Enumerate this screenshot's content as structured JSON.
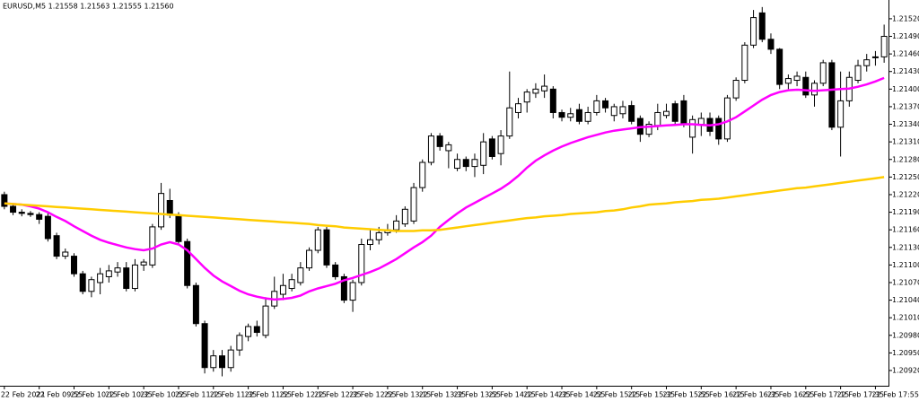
{
  "chart_data": {
    "type": "candlestick",
    "title": "EURUSD,M5  1.21558 1.21563 1.21555 1.21560",
    "categories": [
      "22 Feb 2021",
      null,
      null,
      null,
      "22 Feb 09:55",
      null,
      null,
      null,
      "22 Feb 10:15",
      null,
      null,
      null,
      "22 Feb 10:35",
      null,
      null,
      null,
      "22 Feb 10:55",
      null,
      null,
      null,
      "22 Feb 11:15",
      null,
      null,
      null,
      "22 Feb 11:35",
      null,
      null,
      null,
      "22 Feb 11:55",
      null,
      null,
      null,
      "22 Feb 12:15",
      null,
      null,
      null,
      "22 Feb 12:35",
      null,
      null,
      null,
      "22 Feb 12:55",
      null,
      null,
      null,
      "22 Feb 13:15",
      null,
      null,
      null,
      "22 Feb 13:35",
      null,
      null,
      null,
      "22 Feb 13:55",
      null,
      null,
      null,
      "22 Feb 14:15",
      null,
      null,
      null,
      "22 Feb 14:35",
      null,
      null,
      null,
      "22 Feb 14:55",
      null,
      null,
      null,
      "22 Feb 15:15",
      null,
      null,
      null,
      "22 Feb 15:35",
      null,
      null,
      null,
      "22 Feb 15:55",
      null,
      null,
      null,
      "22 Feb 16:15",
      null,
      null,
      null,
      "22 Feb 16:35",
      null,
      null,
      null,
      "22 Feb 16:55",
      null,
      null,
      null,
      "22 Feb 17:15",
      null,
      null,
      null,
      "22 Feb 17:35",
      null,
      null,
      null,
      "22 Feb 17:55",
      null
    ],
    "open": [
      1.2122,
      1.212,
      1.2119,
      1.21188,
      1.21186,
      1.21183,
      1.2115,
      1.21115,
      1.21115,
      1.21085,
      1.21055,
      1.2107,
      1.2108,
      1.21088,
      1.21095,
      1.2106,
      1.211,
      1.211,
      1.21165,
      1.2121,
      1.21185,
      1.2114,
      1.21065,
      1.21,
      1.20925,
      1.20945,
      1.20925,
      1.20955,
      1.20978,
      1.20995,
      1.2098,
      1.2103,
      1.2105,
      1.2106,
      1.2107,
      1.21095,
      1.21125,
      1.2116,
      1.211,
      1.2108,
      1.2104,
      1.2107,
      1.21135,
      1.21143,
      1.21155,
      1.2116,
      1.2117,
      1.21175,
      1.21232,
      1.21275,
      1.2132,
      1.21295,
      1.21265,
      1.2128,
      1.21268,
      1.2127,
      1.21315,
      1.2129,
      1.2132,
      1.2136,
      1.21378,
      1.21393,
      1.21397,
      1.214,
      1.2136,
      1.21352,
      1.21365,
      1.21345,
      1.2136,
      1.2138,
      1.21355,
      1.21358,
      1.21372,
      1.2135,
      1.21323,
      1.21338,
      1.21355,
      1.21375,
      1.2138,
      1.21318,
      1.2134,
      1.2135,
      1.2135,
      1.21315,
      1.21385,
      1.21415,
      1.21475,
      1.2153,
      1.21485,
      1.21468,
      1.2141,
      1.21415,
      1.2142,
      1.2139,
      1.2141,
      1.21445,
      1.21335,
      1.2138,
      1.21415,
      1.2144,
      1.21455,
      1.21455
    ],
    "high": [
      1.21225,
      1.21205,
      1.21195,
      1.21192,
      1.2119,
      1.2119,
      1.21155,
      1.21128,
      1.2112,
      1.2109,
      1.2108,
      1.21095,
      1.211,
      1.21105,
      1.21105,
      1.2111,
      1.2111,
      1.2117,
      1.2124,
      1.2123,
      1.2119,
      1.21145,
      1.2107,
      1.21005,
      1.20955,
      1.20955,
      1.20962,
      1.20985,
      1.21,
      1.21005,
      1.21045,
      1.2108,
      1.21085,
      1.21085,
      1.21105,
      1.2113,
      1.21165,
      1.21165,
      1.21105,
      1.21085,
      1.21075,
      1.21145,
      1.2116,
      1.21165,
      1.2117,
      1.21185,
      1.212,
      1.2124,
      1.2128,
      1.21325,
      1.21325,
      1.2131,
      1.2129,
      1.21285,
      1.2129,
      1.21325,
      1.2132,
      1.2133,
      1.2143,
      1.21385,
      1.214,
      1.2141,
      1.21425,
      1.21405,
      1.21365,
      1.21368,
      1.21375,
      1.2137,
      1.2139,
      1.21385,
      1.21375,
      1.2138,
      1.2138,
      1.21355,
      1.21345,
      1.21375,
      1.21375,
      1.2138,
      1.2139,
      1.21355,
      1.2136,
      1.2136,
      1.21355,
      1.2139,
      1.2142,
      1.2148,
      1.21535,
      1.2154,
      1.21495,
      1.2147,
      1.21425,
      1.2143,
      1.2143,
      1.21415,
      1.2145,
      1.2145,
      1.2143,
      1.2143,
      1.2145,
      1.2146,
      1.21465,
      1.2151
    ],
    "low": [
      1.21195,
      1.21185,
      1.21183,
      1.21182,
      1.2117,
      1.2114,
      1.2111,
      1.2111,
      1.2108,
      1.2105,
      1.21045,
      1.2105,
      1.2107,
      1.2108,
      1.21055,
      1.21055,
      1.2109,
      1.21095,
      1.2116,
      1.2118,
      1.21135,
      1.2106,
      1.20995,
      1.20915,
      1.20918,
      1.2091,
      1.20918,
      1.20945,
      1.2097,
      1.20978,
      1.20975,
      1.21025,
      1.2104,
      1.21055,
      1.21065,
      1.2109,
      1.2112,
      1.21095,
      1.21075,
      1.21035,
      1.2102,
      1.21065,
      1.21125,
      1.21135,
      1.2115,
      1.21155,
      1.21165,
      1.2117,
      1.21225,
      1.2127,
      1.21295,
      1.21265,
      1.2126,
      1.2126,
      1.2125,
      1.21255,
      1.2128,
      1.2127,
      1.21315,
      1.2135,
      1.2136,
      1.21385,
      1.21385,
      1.2135,
      1.21345,
      1.21345,
      1.2134,
      1.2134,
      1.21355,
      1.2136,
      1.21345,
      1.2135,
      1.2134,
      1.2131,
      1.21318,
      1.2133,
      1.2135,
      1.2134,
      1.21335,
      1.2129,
      1.2132,
      1.2132,
      1.21305,
      1.2131,
      1.2138,
      1.2141,
      1.2147,
      1.2148,
      1.2146,
      1.214,
      1.214,
      1.21405,
      1.21385,
      1.2137,
      1.21405,
      1.2133,
      1.21285,
      1.2137,
      1.2141,
      1.2143,
      1.2144,
      1.21445
    ],
    "close": [
      1.212,
      1.2119,
      1.21188,
      1.21186,
      1.21178,
      1.21145,
      1.21115,
      1.21122,
      1.21085,
      1.21055,
      1.21075,
      1.21085,
      1.2109,
      1.21095,
      1.2106,
      1.211,
      1.21105,
      1.21165,
      1.21222,
      1.21185,
      1.2114,
      1.21065,
      1.21,
      1.20925,
      1.20945,
      1.20925,
      1.20955,
      1.2098,
      1.20995,
      1.20985,
      1.2103,
      1.21055,
      1.21065,
      1.21075,
      1.21095,
      1.21125,
      1.2116,
      1.211,
      1.2108,
      1.2104,
      1.2107,
      1.21135,
      1.21143,
      1.21155,
      1.2116,
      1.21175,
      1.21195,
      1.21232,
      1.21275,
      1.2132,
      1.21302,
      1.21305,
      1.2128,
      1.21268,
      1.2128,
      1.2131,
      1.21285,
      1.2132,
      1.21368,
      1.21375,
      1.21395,
      1.214,
      1.21405,
      1.2136,
      1.21352,
      1.21358,
      1.21345,
      1.2136,
      1.2138,
      1.21368,
      1.2137,
      1.2137,
      1.21345,
      1.21323,
      1.2134,
      1.2136,
      1.21362,
      1.21345,
      1.21342,
      1.21348,
      1.2135,
      1.21328,
      1.21315,
      1.21385,
      1.21415,
      1.21475,
      1.21522,
      1.21485,
      1.21468,
      1.21408,
      1.21418,
      1.21422,
      1.2139,
      1.2141,
      1.21445,
      1.21335,
      1.2138,
      1.2142,
      1.2144,
      1.2145,
      1.21455,
      1.2149
    ],
    "up_color": "#ffffff",
    "down_color": "#000000",
    "wick_color": "#000000",
    "overlays": [
      {
        "color": "#ff00ff",
        "values": [
          1.21205,
          1.21204,
          1.21203,
          1.212,
          1.21196,
          1.2119,
          1.21182,
          1.21175,
          1.21166,
          1.21158,
          1.2115,
          1.21143,
          1.21138,
          1.21134,
          1.2113,
          1.21127,
          1.21125,
          1.21128,
          1.21135,
          1.21139,
          1.21135,
          1.21125,
          1.2111,
          1.21095,
          1.21082,
          1.21072,
          1.21064,
          1.21056,
          1.2105,
          1.21046,
          1.21043,
          1.21041,
          1.21042,
          1.21044,
          1.21048,
          1.21055,
          1.2106,
          1.21064,
          1.21068,
          1.21074,
          1.21078,
          1.21083,
          1.21088,
          1.21094,
          1.21102,
          1.2111,
          1.2112,
          1.2113,
          1.21139,
          1.2115,
          1.21165,
          1.21177,
          1.21188,
          1.21198,
          1.21206,
          1.21214,
          1.21222,
          1.2123,
          1.2124,
          1.21252,
          1.21266,
          1.21278,
          1.21287,
          1.21295,
          1.21302,
          1.21308,
          1.21313,
          1.21318,
          1.21322,
          1.21326,
          1.21329,
          1.21331,
          1.21333,
          1.21335,
          1.21336,
          1.21337,
          1.21338,
          1.21339,
          1.2134,
          1.2134,
          1.21339,
          1.21338,
          1.2134,
          1.21345,
          1.21352,
          1.21362,
          1.21372,
          1.21382,
          1.2139,
          1.21395,
          1.21398,
          1.21399,
          1.21398,
          1.21397,
          1.21398,
          1.21399,
          1.214,
          1.21401,
          1.21404,
          1.21408,
          1.21413,
          1.21419
        ]
      },
      {
        "color": "#ffcc00",
        "values": [
          1.21205,
          1.21204,
          1.21203,
          1.21202,
          1.21201,
          1.212,
          1.21199,
          1.21198,
          1.21197,
          1.21196,
          1.21195,
          1.21194,
          1.21193,
          1.21192,
          1.21191,
          1.2119,
          1.21189,
          1.21188,
          1.21187,
          1.21186,
          1.21185,
          1.21184,
          1.21183,
          1.21182,
          1.21181,
          1.2118,
          1.21179,
          1.21178,
          1.21177,
          1.21176,
          1.21175,
          1.21174,
          1.21173,
          1.21172,
          1.21171,
          1.2117,
          1.21168,
          1.21167,
          1.21166,
          1.21164,
          1.21163,
          1.21162,
          1.21161,
          1.2116,
          1.21159,
          1.21158,
          1.21158,
          1.21158,
          1.21159,
          1.21159,
          1.2116,
          1.21162,
          1.21164,
          1.21166,
          1.21168,
          1.2117,
          1.21172,
          1.21174,
          1.21176,
          1.21178,
          1.2118,
          1.21181,
          1.21183,
          1.21184,
          1.21185,
          1.21187,
          1.21188,
          1.21189,
          1.2119,
          1.21192,
          1.21193,
          1.21195,
          1.21198,
          1.212,
          1.21203,
          1.21204,
          1.21205,
          1.21207,
          1.21208,
          1.21209,
          1.21211,
          1.21212,
          1.21213,
          1.21215,
          1.21217,
          1.21219,
          1.21221,
          1.21223,
          1.21225,
          1.21227,
          1.21229,
          1.21231,
          1.21232,
          1.21234,
          1.21236,
          1.21238,
          1.2124,
          1.21242,
          1.21244,
          1.21246,
          1.21248,
          1.2125
        ]
      }
    ],
    "ylim": [
      1.20894,
      1.21552
    ],
    "yticks": [
      {
        "value": 1.2152,
        "label": "1.21520"
      },
      {
        "value": 1.2149,
        "label": "1.21490"
      },
      {
        "value": 1.2146,
        "label": "1.21460"
      },
      {
        "value": 1.2143,
        "label": "1.21430"
      },
      {
        "value": 1.214,
        "label": "1.21400"
      },
      {
        "value": 1.2137,
        "label": "1.21370"
      },
      {
        "value": 1.2134,
        "label": "1.21340"
      },
      {
        "value": 1.2131,
        "label": "1.21310"
      },
      {
        "value": 1.2128,
        "label": "1.21280"
      },
      {
        "value": 1.2125,
        "label": "1.21250"
      },
      {
        "value": 1.2122,
        "label": "1.21220"
      },
      {
        "value": 1.2119,
        "label": "1.21190"
      },
      {
        "value": 1.2116,
        "label": "1.21160"
      },
      {
        "value": 1.2113,
        "label": "1.21130"
      },
      {
        "value": 1.211,
        "label": "1.21100"
      },
      {
        "value": 1.2107,
        "label": "1.21070"
      },
      {
        "value": 1.2104,
        "label": "1.21040"
      },
      {
        "value": 1.2101,
        "label": "1.21010"
      },
      {
        "value": 1.2098,
        "label": "1.20980"
      },
      {
        "value": 1.2095,
        "label": "1.20950"
      },
      {
        "value": 1.2092,
        "label": "1.20920"
      }
    ],
    "grid": false
  }
}
